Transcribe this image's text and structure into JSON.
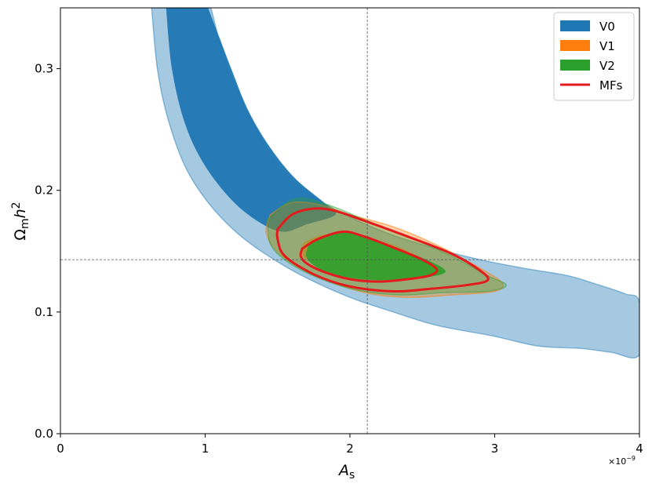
{
  "chart_data": {
    "type": "contour",
    "xlabel": "A",
    "xlabel_sub": "s",
    "ylabel_main": "Ω",
    "ylabel_sub": "m",
    "ylabel_tail": "h",
    "ylabel_sup": "2",
    "x_exponent": "×10",
    "x_exponent_sup": "−9",
    "xlim": [
      0,
      4
    ],
    "ylim": [
      0.0,
      0.35
    ],
    "x_ticks": [
      0,
      1,
      2,
      3,
      4
    ],
    "x_tick_labels": [
      "0",
      "1",
      "2",
      "3",
      "4"
    ],
    "y_ticks": [
      0.0,
      0.1,
      0.2,
      0.3
    ],
    "y_tick_labels": [
      "0.0",
      "0.1",
      "0.2",
      "0.3"
    ],
    "reference_lines": {
      "x": 2.12,
      "y": 0.143
    },
    "legend_position": "top-right",
    "colors": {
      "V0": "#1f77b4",
      "V1": "#ff7f0e",
      "V2": "#2ca02c",
      "MFs": "#e41a1c"
    },
    "series": [
      {
        "name": "V0",
        "kind": "filled",
        "levels": {
          "outer": [
            [
              0.63,
              0.35
            ],
            [
              0.67,
              0.3
            ],
            [
              0.74,
              0.26
            ],
            [
              0.86,
              0.22
            ],
            [
              1.02,
              0.19
            ],
            [
              1.22,
              0.165
            ],
            [
              1.45,
              0.145
            ],
            [
              1.7,
              0.128
            ],
            [
              2.0,
              0.112
            ],
            [
              2.3,
              0.1
            ],
            [
              2.6,
              0.089
            ],
            [
              3.0,
              0.08
            ],
            [
              3.3,
              0.072
            ],
            [
              3.6,
              0.07
            ],
            [
              3.8,
              0.067
            ],
            [
              4.0,
              0.065
            ],
            [
              4.0,
              0.108
            ],
            [
              3.9,
              0.115
            ],
            [
              3.7,
              0.123
            ],
            [
              3.5,
              0.13
            ],
            [
              3.2,
              0.136
            ],
            [
              2.9,
              0.143
            ],
            [
              2.6,
              0.152
            ],
            [
              2.3,
              0.163
            ],
            [
              2.0,
              0.178
            ],
            [
              1.75,
              0.195
            ],
            [
              1.55,
              0.215
            ],
            [
              1.4,
              0.24
            ],
            [
              1.25,
              0.275
            ],
            [
              1.13,
              0.31
            ],
            [
              1.04,
              0.35
            ]
          ],
          "inner": [
            [
              0.73,
              0.35
            ],
            [
              0.77,
              0.3
            ],
            [
              0.86,
              0.255
            ],
            [
              1.0,
              0.22
            ],
            [
              1.2,
              0.19
            ],
            [
              1.4,
              0.172
            ],
            [
              1.55,
              0.166
            ],
            [
              1.7,
              0.172
            ],
            [
              1.9,
              0.18
            ],
            [
              1.82,
              0.19
            ],
            [
              1.62,
              0.21
            ],
            [
              1.45,
              0.235
            ],
            [
              1.3,
              0.265
            ],
            [
              1.18,
              0.3
            ],
            [
              1.1,
              0.325
            ],
            [
              1.02,
              0.35
            ]
          ]
        }
      },
      {
        "name": "V1",
        "kind": "filled",
        "levels": {
          "outer": [
            [
              1.45,
              0.18
            ],
            [
              1.6,
              0.19
            ],
            [
              1.8,
              0.188
            ],
            [
              2.0,
              0.18
            ],
            [
              2.3,
              0.17
            ],
            [
              2.6,
              0.155
            ],
            [
              2.9,
              0.136
            ],
            [
              3.05,
              0.124
            ],
            [
              3.0,
              0.117
            ],
            [
              2.7,
              0.114
            ],
            [
              2.4,
              0.112
            ],
            [
              2.1,
              0.116
            ],
            [
              1.8,
              0.128
            ],
            [
              1.6,
              0.14
            ],
            [
              1.48,
              0.152
            ],
            [
              1.42,
              0.166
            ],
            [
              1.45,
              0.18
            ]
          ],
          "inner": [
            [
              1.68,
              0.157
            ],
            [
              1.8,
              0.163
            ],
            [
              2.0,
              0.164
            ],
            [
              2.3,
              0.155
            ],
            [
              2.55,
              0.141
            ],
            [
              2.65,
              0.134
            ],
            [
              2.55,
              0.129
            ],
            [
              2.35,
              0.127
            ],
            [
              2.1,
              0.128
            ],
            [
              1.85,
              0.134
            ],
            [
              1.7,
              0.143
            ],
            [
              1.66,
              0.15
            ],
            [
              1.68,
              0.157
            ]
          ]
        }
      },
      {
        "name": "V2",
        "kind": "filled",
        "levels": {
          "outer": [
            [
              1.43,
              0.176
            ],
            [
              1.62,
              0.193
            ],
            [
              1.85,
              0.188
            ],
            [
              2.1,
              0.176
            ],
            [
              2.4,
              0.162
            ],
            [
              2.7,
              0.146
            ],
            [
              2.95,
              0.13
            ],
            [
              3.08,
              0.122
            ],
            [
              2.95,
              0.117
            ],
            [
              2.65,
              0.116
            ],
            [
              2.35,
              0.114
            ],
            [
              2.05,
              0.118
            ],
            [
              1.78,
              0.128
            ],
            [
              1.56,
              0.142
            ],
            [
              1.45,
              0.156
            ],
            [
              1.43,
              0.176
            ]
          ],
          "inner": [
            [
              1.72,
              0.157
            ],
            [
              1.9,
              0.165
            ],
            [
              2.05,
              0.164
            ],
            [
              2.3,
              0.153
            ],
            [
              2.55,
              0.142
            ],
            [
              2.66,
              0.133
            ],
            [
              2.5,
              0.128
            ],
            [
              2.25,
              0.126
            ],
            [
              2.0,
              0.128
            ],
            [
              1.8,
              0.135
            ],
            [
              1.7,
              0.145
            ],
            [
              1.72,
              0.157
            ]
          ]
        }
      },
      {
        "name": "MFs",
        "kind": "line",
        "levels": {
          "outer": [
            [
              1.5,
              0.168
            ],
            [
              1.6,
              0.18
            ],
            [
              1.75,
              0.185
            ],
            [
              1.9,
              0.183
            ],
            [
              2.1,
              0.175
            ],
            [
              2.4,
              0.162
            ],
            [
              2.7,
              0.148
            ],
            [
              2.9,
              0.134
            ],
            [
              2.95,
              0.126
            ],
            [
              2.8,
              0.122
            ],
            [
              2.55,
              0.119
            ],
            [
              2.3,
              0.117
            ],
            [
              2.0,
              0.121
            ],
            [
              1.75,
              0.131
            ],
            [
              1.55,
              0.146
            ],
            [
              1.5,
              0.16
            ],
            [
              1.5,
              0.168
            ]
          ],
          "inner": [
            [
              1.67,
              0.152
            ],
            [
              1.78,
              0.16
            ],
            [
              1.95,
              0.166
            ],
            [
              2.1,
              0.162
            ],
            [
              2.3,
              0.153
            ],
            [
              2.5,
              0.143
            ],
            [
              2.6,
              0.135
            ],
            [
              2.55,
              0.13
            ],
            [
              2.4,
              0.127
            ],
            [
              2.2,
              0.125
            ],
            [
              2.0,
              0.127
            ],
            [
              1.82,
              0.133
            ],
            [
              1.7,
              0.14
            ],
            [
              1.66,
              0.146
            ],
            [
              1.67,
              0.152
            ]
          ]
        }
      }
    ]
  }
}
